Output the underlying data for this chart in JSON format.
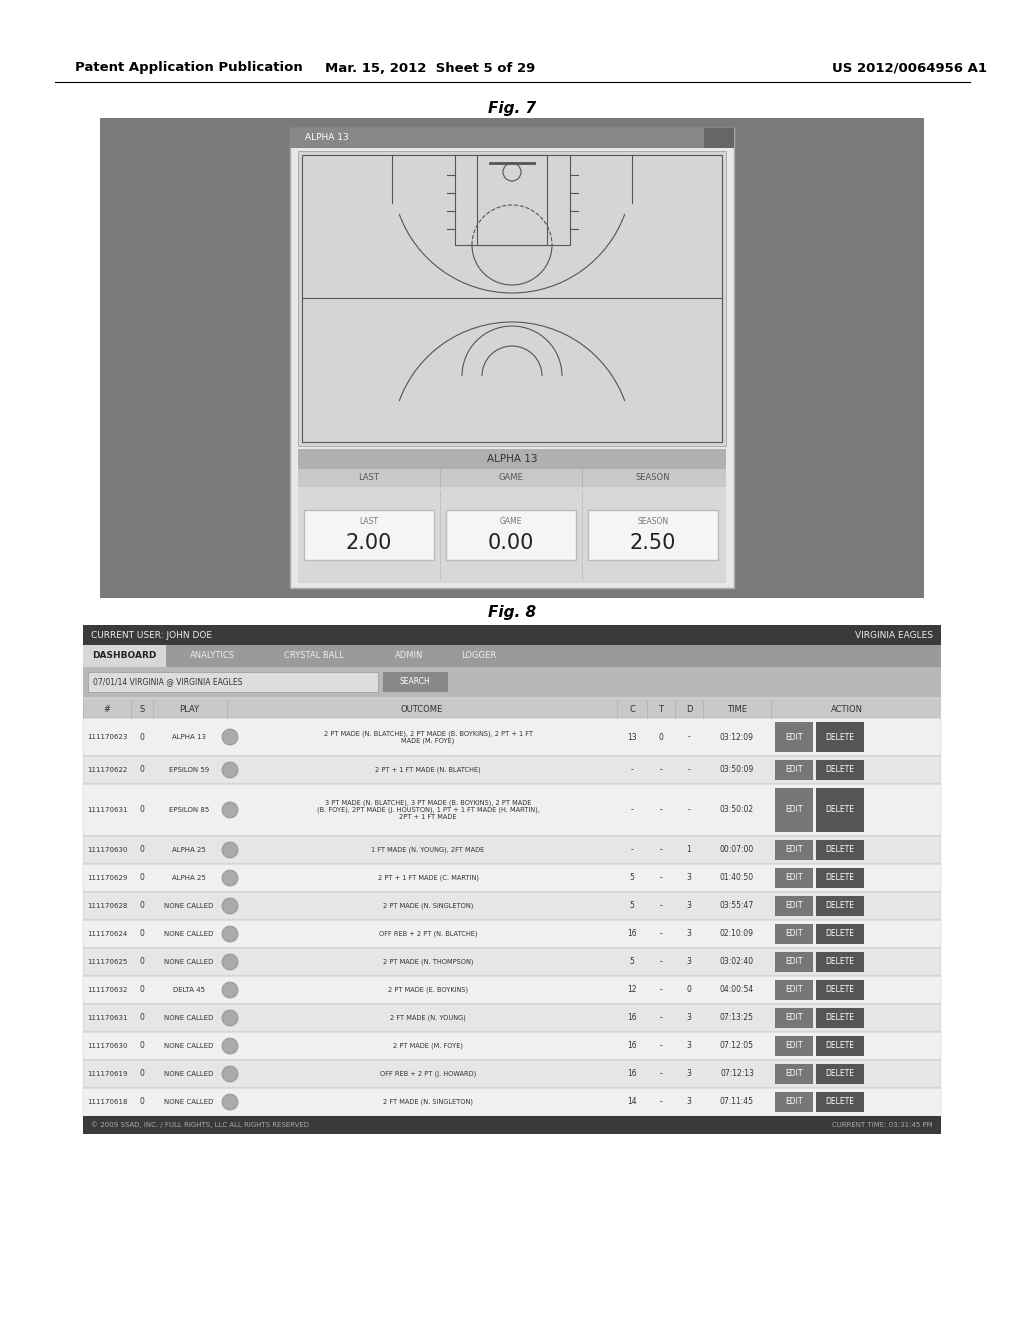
{
  "page_title_left": "Patent Application Publication",
  "page_title_center": "Mar. 15, 2012  Sheet 5 of 29",
  "page_title_right": "US 2012/0064956 A1",
  "fig7_label": "Fig. 7",
  "fig8_label": "Fig. 8",
  "bg_color": "#ffffff",
  "fig7": {
    "outer_bg": "#808080",
    "inner_bg": "#d8d8d8",
    "court_line_color": "#555555",
    "header_text": "ALPHA 13",
    "stats_labels": [
      "LAST",
      "GAME",
      "SEASON"
    ],
    "stats_values": [
      "2.00",
      "0.00",
      "2.50"
    ]
  },
  "fig8": {
    "header_left": "CURRENT USER: JOHN DOE",
    "header_right": "VIRGINIA EAGLES",
    "nav_items": [
      "DASHBOARD",
      "ANALYTICS",
      "CRYSTAL BALL",
      "ADMIN",
      "LOGGER"
    ],
    "filter_text": "07/01/14 VIRGINIA @ VIRGINIA EAGLES",
    "rows": [
      {
        "id": "111170623",
        "s": "0",
        "play": "ALPHA 13",
        "outcome": "2 PT MADE (N. BLATCHE), 2 PT MADE (B. BOYKINS), 2 PT + 1 FT\nMADE (M. FOYE)",
        "c": "13",
        "t": "0",
        "d": "-",
        "time": "03:12:09"
      },
      {
        "id": "111170622",
        "s": "0",
        "play": "EPSILON 59",
        "outcome": "2 PT + 1 FT MADE (N. BLATCHE)",
        "c": "-",
        "t": "-",
        "d": "-",
        "time": "03:50:09"
      },
      {
        "id": "111170631",
        "s": "0",
        "play": "EPSILON 85",
        "outcome": "3 PT MADE (N. BLATCHE), 3 PT MADE (B. BOYKINS), 2 PT MADE\n(B. FOYE), 2PT MADE (J. HOUSTON), 1 PT + 1 FT MADE (H. MARTIN),\n2PT + 1 FT MADE",
        "c": "-",
        "t": "-",
        "d": "-",
        "time": "03:50:02"
      },
      {
        "id": "111170630",
        "s": "0",
        "play": "ALPHA 25",
        "outcome": "1 FT MADE (N. YOUNG), 2FT MADE",
        "c": "-",
        "t": "-",
        "d": "1",
        "time": "00:07:00"
      },
      {
        "id": "111170629",
        "s": "0",
        "play": "ALPHA 25",
        "outcome": "2 PT + 1 FT MADE (C. MARTIN)",
        "c": "5",
        "t": "-",
        "d": "3",
        "time": "01:40:50"
      },
      {
        "id": "111170628",
        "s": "0",
        "play": "NONE CALLED",
        "outcome": "2 PT MADE (N. SINGLETON)",
        "c": "5",
        "t": "-",
        "d": "3",
        "time": "03:55:47"
      },
      {
        "id": "111170624",
        "s": "0",
        "play": "NONE CALLED",
        "outcome": "OFF REB + 2 PT (N. BLATCHE)",
        "c": "16",
        "t": "-",
        "d": "3",
        "time": "02:10:09"
      },
      {
        "id": "111170625",
        "s": "0",
        "play": "NONE CALLED",
        "outcome": "2 PT MADE (N. THOMPSON)",
        "c": "5",
        "t": "-",
        "d": "3",
        "time": "03:02:40"
      },
      {
        "id": "111170632",
        "s": "0",
        "play": "DELTA 45",
        "outcome": "2 PT MADE (E. BOYKINS)",
        "c": "12",
        "t": "-",
        "d": "0",
        "time": "04:00:54"
      },
      {
        "id": "111170631",
        "s": "0",
        "play": "NONE CALLED",
        "outcome": "2 FT MADE (N. YOUNG)",
        "c": "16",
        "t": "-",
        "d": "3",
        "time": "07:13:25"
      },
      {
        "id": "111170630",
        "s": "0",
        "play": "NONE CALLED",
        "outcome": "2 PT MADE (M. FOYE)",
        "c": "16",
        "t": "-",
        "d": "3",
        "time": "07:12:05"
      },
      {
        "id": "111170619",
        "s": "0",
        "play": "NONE CALLED",
        "outcome": "OFF REB + 2 PT (J. HOWARD)",
        "c": "16",
        "t": "-",
        "d": "3",
        "time": "07:12:13"
      },
      {
        "id": "111170618",
        "s": "0",
        "play": "NONE CALLED",
        "outcome": "2 FT MADE (N. SINGLETON)",
        "c": "14",
        "t": "-",
        "d": "3",
        "time": "07:11:45"
      }
    ]
  }
}
